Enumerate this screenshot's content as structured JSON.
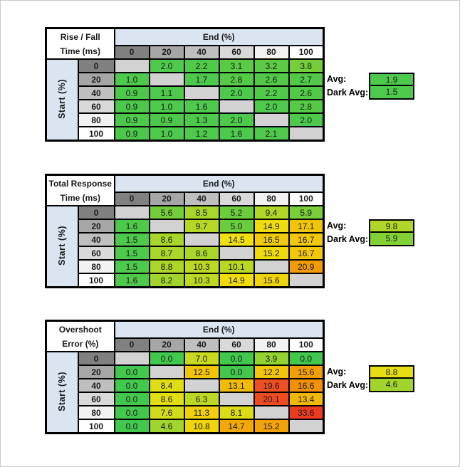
{
  "page": {
    "background": "#FFFFFF",
    "frame_border": "#C9C9C9"
  },
  "palette": {
    "header_blue": "#DBE5F1",
    "header_grays": [
      "#808080",
      "#A6A6A6",
      "#BFBFBF",
      "#D9D9D9",
      "#F2F2F2",
      "#FFFFFF"
    ],
    "blank_cell": "#D2D2D2",
    "grid_border": "#000000",
    "green": "#4DC94B",
    "yellow": "#F0DC0D",
    "orange": "#F29B05",
    "red": "#EE3A1F"
  },
  "chart_data": [
    {
      "type": "heatmap",
      "title_line1": "Rise / Fall",
      "title_line2": "Time (ms)",
      "col_axis_label": "End (%)",
      "row_axis_label": "Start (%)",
      "columns": [
        "0",
        "20",
        "40",
        "60",
        "80",
        "100"
      ],
      "rows": [
        "0",
        "20",
        "40",
        "60",
        "80",
        "100"
      ],
      "values": [
        [
          null,
          "2.0",
          "2.2",
          "3.1",
          "3.2",
          "3.8"
        ],
        [
          "1.0",
          null,
          "1.7",
          "2.8",
          "2.6",
          "2.7"
        ],
        [
          "0.9",
          "1.1",
          null,
          "2.0",
          "2.2",
          "2.6"
        ],
        [
          "0.9",
          "1.0",
          "1.6",
          null,
          "2.0",
          "2.8"
        ],
        [
          "0.9",
          "0.9",
          "1.3",
          "2.0",
          null,
          "2.0"
        ],
        [
          "0.9",
          "1.0",
          "1.2",
          "1.6",
          "2.1",
          null
        ]
      ],
      "cell_colors": [
        [
          null,
          "#4DC94B",
          "#50CA49",
          "#5ACB45",
          "#5CCB44",
          "#74CF3A"
        ],
        [
          "#4DC94B",
          null,
          "#4DC94B",
          "#55CA47",
          "#52CA48",
          "#53CA47"
        ],
        [
          "#4CC94B",
          "#4DC94B",
          null,
          "#4DC94B",
          "#50CA49",
          "#52CA48"
        ],
        [
          "#4CC94B",
          "#4DC94B",
          "#4DC94B",
          null,
          "#4DC94B",
          "#55CA47"
        ],
        [
          "#4CC94B",
          "#4CC94B",
          "#4DC94B",
          "#4DC94B",
          null,
          "#4DC94B"
        ],
        [
          "#4CC94B",
          "#4DC94B",
          "#4DC94B",
          "#4DC94B",
          "#4FC94A",
          null
        ]
      ],
      "avg": {
        "label": "Avg:",
        "value": "1.9",
        "color": "#4DC94B"
      },
      "dark_avg": {
        "label": "Dark Avg:",
        "value": "1.5",
        "color": "#4DC94B"
      }
    },
    {
      "type": "heatmap",
      "title_line1": "Total Response",
      "title_line2": "Time (ms)",
      "col_axis_label": "End (%)",
      "row_axis_label": "Start (%)",
      "columns": [
        "0",
        "20",
        "40",
        "60",
        "80",
        "100"
      ],
      "rows": [
        "0",
        "20",
        "40",
        "60",
        "80",
        "100"
      ],
      "values": [
        [
          null,
          "5.6",
          "8.5",
          "5.2",
          "9.4",
          "5.9"
        ],
        [
          "1.6",
          null,
          "9.7",
          "5.0",
          "14.9",
          "17.1"
        ],
        [
          "1.5",
          "8.6",
          null,
          "14.5",
          "16.5",
          "16.7"
        ],
        [
          "1.5",
          "8.7",
          "8.6",
          null,
          "15.2",
          "16.7"
        ],
        [
          "1.5",
          "8.8",
          "10.3",
          "10.1",
          null,
          "20.9"
        ],
        [
          "1.6",
          "8.2",
          "10.3",
          "14.9",
          "15.6",
          null
        ]
      ],
      "cell_colors": [
        [
          null,
          "#73CE3A",
          "#A6D62A",
          "#6CCD3D",
          "#B1D726",
          "#79CF37"
        ],
        [
          "#4EC94A",
          null,
          "#B5D725",
          "#69CD3E",
          "#F0DC0D",
          "#F1C309"
        ],
        [
          "#4DC94B",
          "#A8D629",
          null,
          "#EFE00F",
          "#F1CB0A",
          "#F1C90A"
        ],
        [
          "#4DC94B",
          "#A9D629",
          "#A8D629",
          null,
          "#F0DA0C",
          "#F1C90A"
        ],
        [
          "#4DC94B",
          "#ABD628",
          "#BCD823",
          "#B9D824",
          null,
          "#F29B05"
        ],
        [
          "#4EC94A",
          "#A2D52B",
          "#BCD823",
          "#F0DC0D",
          "#F0D50C",
          null
        ]
      ],
      "avg": {
        "label": "Avg:",
        "value": "9.8",
        "color": "#B0D627"
      },
      "dark_avg": {
        "label": "Dark Avg:",
        "value": "5.9",
        "color": "#82D134"
      }
    },
    {
      "type": "heatmap",
      "title_line1": "Overshoot",
      "title_line2": "Error (%)",
      "col_axis_label": "End (%)",
      "row_axis_label": "Start (%)",
      "columns": [
        "0",
        "20",
        "40",
        "60",
        "80",
        "100"
      ],
      "rows": [
        "0",
        "20",
        "40",
        "60",
        "80",
        "100"
      ],
      "values": [
        [
          null,
          "0.0",
          "7.0",
          "0.0",
          "3.9",
          "0.0"
        ],
        [
          "0.0",
          null,
          "12.5",
          "0.0",
          "12.2",
          "15.6"
        ],
        [
          "0.0",
          "8.4",
          null,
          "13.1",
          "19.6",
          "16.6"
        ],
        [
          "0.0",
          "8.6",
          "6.3",
          null,
          "20.1",
          "13.4"
        ],
        [
          "0.0",
          "7.6",
          "11.3",
          "8.1",
          null,
          "33.6"
        ],
        [
          "0.0",
          "4.6",
          "10.8",
          "14.7",
          "15.2",
          null
        ]
      ],
      "cell_colors": [
        [
          null,
          "#41C84D",
          "#C9DA1E",
          "#41C84D",
          "#93D32F",
          "#41C84D"
        ],
        [
          "#41C84D",
          null,
          "#F1C309",
          "#41C84D",
          "#F1C60A",
          "#F29E05"
        ],
        [
          "#41C84D",
          "#DFDE15",
          null,
          "#F1BB08",
          "#EF4F22",
          "#F29105"
        ],
        [
          "#41C84D",
          "#E2DE14",
          "#BDD822",
          null,
          "#EF4B21",
          "#F1B808"
        ],
        [
          "#41C84D",
          "#D3DC1A",
          "#F0D00B",
          "#DBDD17",
          null,
          "#EE3A1F"
        ],
        [
          "#41C84D",
          "#9FD52C",
          "#F0D50C",
          "#F2A806",
          "#F2A306",
          null
        ]
      ],
      "avg": {
        "label": "Avg:",
        "value": "8.8",
        "color": "#E4DE13"
      },
      "dark_avg": {
        "label": "Dark Avg:",
        "value": "4.6",
        "color": "#9FD52C"
      }
    }
  ]
}
